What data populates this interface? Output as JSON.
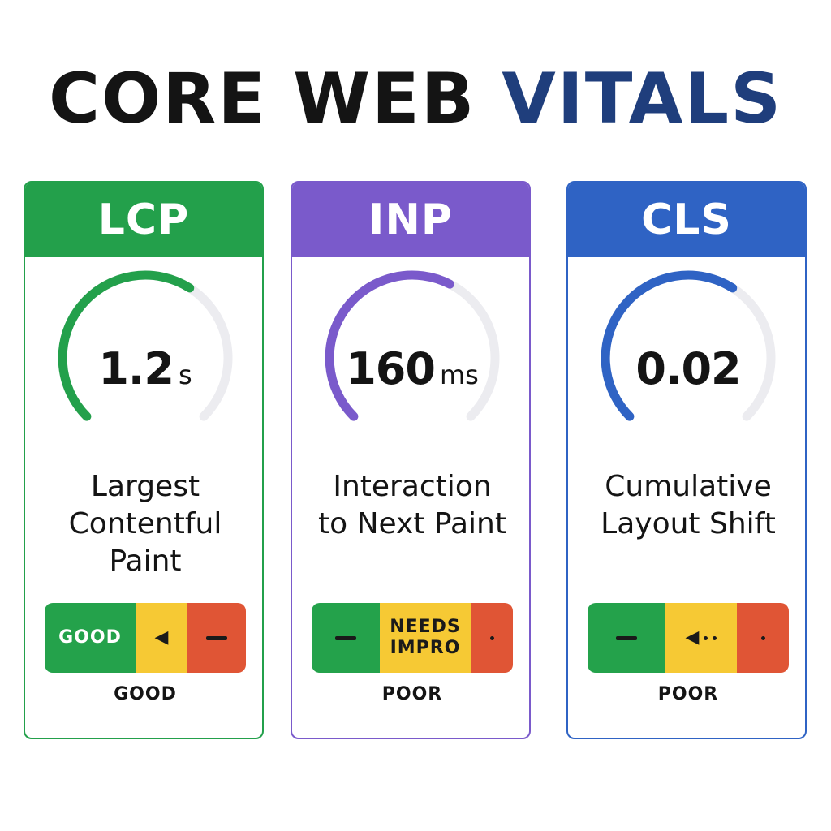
{
  "title": {
    "main": "CORE WEB",
    "accent": "VITALS"
  },
  "colors": {
    "lcp": "#23a04b",
    "inp": "#7a5acb",
    "cls": "#2f63c4",
    "track": "#ececf0",
    "good": "#24a24b",
    "needs_improvement": "#f6c934",
    "poor": "#e05535"
  },
  "cards": [
    {
      "abbr": "LCP",
      "value": "1.2",
      "unit": "s",
      "name_line1": "Largest",
      "name_line2": "Contentful",
      "name_line3": "Paint",
      "gauge_fill": 0.62,
      "scale": {
        "green_label": "GOOD",
        "yellow_icon": "left-arrow-icon",
        "red_icon": "dash-icon"
      },
      "rating": "GOOD"
    },
    {
      "abbr": "INP",
      "value": "160",
      "unit": "ms",
      "name_line1": "Interaction",
      "name_line2": "to Next Paint",
      "gauge_fill": 0.6,
      "scale": {
        "green_icon": "dash-icon",
        "yellow_label_1": "NEEDS",
        "yellow_label_2": "IMPRO",
        "red_icon": "dot-icon"
      },
      "rating": "POOR"
    },
    {
      "abbr": "CLS",
      "value": "0.02",
      "unit": "",
      "name_line1": "Cumulative",
      "name_line2": "Layout Shift",
      "gauge_fill": 0.62,
      "scale": {
        "green_icon": "dash-icon",
        "yellow_icon": "left-arrow-dots-icon",
        "red_icon": "dot-icon"
      },
      "rating": "POOR"
    }
  ]
}
